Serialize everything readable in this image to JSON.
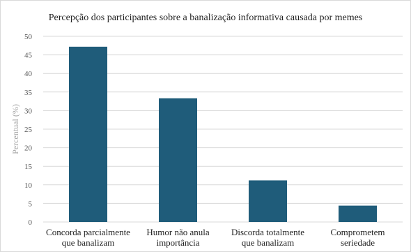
{
  "chart_data": {
    "type": "bar",
    "title": "Percepção dos participantes sobre a banalização informativa causada por memes",
    "xlabel": "",
    "ylabel": "Percentual (%)",
    "categories": [
      [
        "Concorda parcialmente",
        "que banalizam"
      ],
      [
        "Humor não anula",
        "importância"
      ],
      [
        "Discorda totalmente",
        "que banalizam"
      ],
      [
        "Comprometem",
        "seriedade"
      ]
    ],
    "values": [
      47.2,
      33.3,
      11.2,
      4.4
    ],
    "ylim": [
      0,
      50
    ],
    "yticks": [
      0,
      5,
      10,
      15,
      20,
      25,
      30,
      35,
      40,
      45,
      50
    ],
    "grid": true,
    "bar_color": "#1f5c7a",
    "grid_color": "#d9d9d9"
  }
}
